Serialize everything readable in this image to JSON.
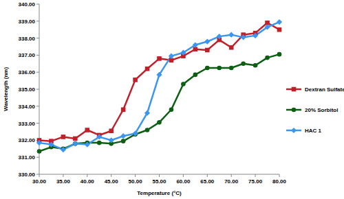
{
  "chart_data": {
    "type": "line",
    "xlabel": "Temperature (°C)",
    "ylabel": "Wavelength (nm)",
    "x": [
      30,
      32.5,
      35,
      37.5,
      40,
      42.5,
      45,
      47.5,
      50,
      52.5,
      55,
      57.5,
      60,
      62.5,
      65,
      67.5,
      70,
      72.5,
      75,
      77.5,
      80
    ],
    "series": [
      {
        "name": "Dextran Sulfate",
        "color": "#c0202a",
        "marker": "square",
        "values": [
          332.0,
          331.95,
          332.2,
          332.1,
          332.6,
          332.3,
          332.55,
          333.8,
          335.55,
          336.2,
          336.8,
          336.7,
          336.95,
          337.35,
          337.3,
          337.9,
          337.45,
          338.2,
          338.3,
          338.9,
          338.5
        ]
      },
      {
        "name": "20% Sorbitol",
        "color": "#0b5e12",
        "marker": "circle",
        "values": [
          331.35,
          331.6,
          331.5,
          331.8,
          331.85,
          331.85,
          331.8,
          331.95,
          332.35,
          332.6,
          333.05,
          333.8,
          335.3,
          335.85,
          336.25,
          336.25,
          336.25,
          336.5,
          336.4,
          336.85,
          337.05
        ]
      },
      {
        "name": "HAC 1",
        "color": "#3a96f0",
        "marker": "diamond",
        "values": [
          331.85,
          331.75,
          331.45,
          331.8,
          331.75,
          332.2,
          332.0,
          332.25,
          332.4,
          333.6,
          335.85,
          336.95,
          337.15,
          337.6,
          337.8,
          338.1,
          338.2,
          338.05,
          338.15,
          338.65,
          338.95
        ]
      }
    ],
    "xlim": [
      30,
      80
    ],
    "xticks": [
      {
        "value": 30,
        "label": "30.00"
      },
      {
        "value": 35,
        "label": "35.00"
      },
      {
        "value": 40,
        "label": "40.00"
      },
      {
        "value": 45,
        "label": "45.00"
      },
      {
        "value": 50,
        "label": "50.00"
      },
      {
        "value": 55,
        "label": "55.00"
      },
      {
        "value": 60,
        "label": "60.00"
      },
      {
        "value": 65,
        "label": "65.00"
      },
      {
        "value": 70,
        "label": "70.00"
      },
      {
        "value": 75,
        "label": "75.00"
      },
      {
        "value": 80,
        "label": "80.00"
      }
    ],
    "ylim": [
      330,
      340
    ],
    "yticks": [
      {
        "value": 330,
        "label": "330.00"
      },
      {
        "value": 331,
        "label": "331.00"
      },
      {
        "value": 332,
        "label": "332.00"
      },
      {
        "value": 333,
        "label": "333.00"
      },
      {
        "value": 334,
        "label": "334.00"
      },
      {
        "value": 335,
        "label": "335.00"
      },
      {
        "value": 336,
        "label": "336.00"
      },
      {
        "value": 337,
        "label": "337.00"
      },
      {
        "value": 338,
        "label": "338.00"
      },
      {
        "value": 339,
        "label": "339.00"
      },
      {
        "value": 340,
        "label": "340.00"
      }
    ],
    "grid": false,
    "legend": "right"
  }
}
